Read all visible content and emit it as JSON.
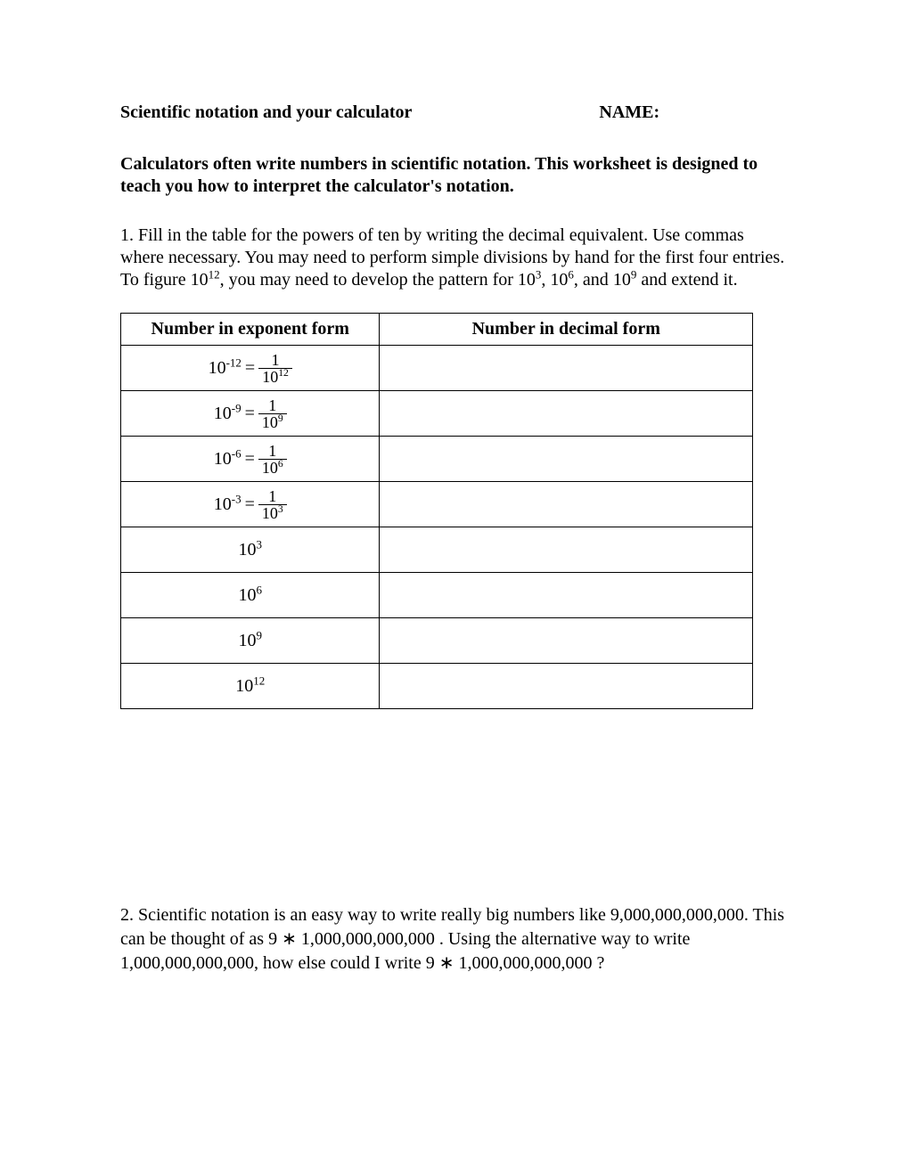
{
  "header": {
    "title": "Scientific notation and your calculator",
    "name_label": "NAME:"
  },
  "intro": "Calculators often write numbers in scientific notation. This worksheet is designed to teach you how to interpret the calculator's notation.",
  "q1": {
    "number": "1.",
    "text_before": "Fill in the table for the powers of ten by writing the decimal equivalent. Use commas where necessary. You may need to perform simple divisions by hand for the first four entries. To figure ",
    "exp_a_base": "10",
    "exp_a_sup": "12",
    "text_mid1": ", you may need to develop the pattern for ",
    "exp_b_base": "10",
    "exp_b_sup": "3",
    "text_mid2": ", ",
    "exp_c_base": "10",
    "exp_c_sup": "6",
    "text_mid3": ", and ",
    "exp_d_base": "10",
    "exp_d_sup": "9",
    "text_after": " and extend it."
  },
  "table": {
    "col1": "Number in exponent form",
    "col2": "Number in decimal form",
    "rows": [
      {
        "type": "frac",
        "lhs_base": "10",
        "lhs_sup": "-12",
        "eq": "=",
        "num": "1",
        "den_base": "10",
        "den_sup": "12"
      },
      {
        "type": "frac",
        "lhs_base": "10",
        "lhs_sup": "-9",
        "eq": "=",
        "num": "1",
        "den_base": "10",
        "den_sup": "9"
      },
      {
        "type": "frac",
        "lhs_base": "10",
        "lhs_sup": "-6",
        "eq": "=",
        "num": "1",
        "den_base": "10",
        "den_sup": "6"
      },
      {
        "type": "frac",
        "lhs_base": "10",
        "lhs_sup": "-3",
        "eq": "=",
        "num": "1",
        "den_base": "10",
        "den_sup": "3"
      },
      {
        "type": "simple",
        "base": "10",
        "sup": "3"
      },
      {
        "type": "simple",
        "base": "10",
        "sup": "6"
      },
      {
        "type": "simple",
        "base": "10",
        "sup": "9"
      },
      {
        "type": "simple",
        "base": "10",
        "sup": "12"
      }
    ]
  },
  "q2": {
    "number": "2.",
    "line1_a": "Scientific notation is an easy way to write really big numbers like 9,000,000,000,000. This can be thought of as ",
    "expr1": "9 ∗ 1,000,000,000,000",
    "line1_b": " . Using the alternative way to write 1,000,000,000,000, how else could I write ",
    "expr2": "9 ∗ 1,000,000,000,000",
    "line1_c": " ?"
  }
}
